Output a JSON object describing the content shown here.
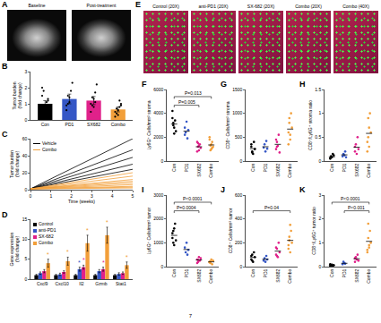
{
  "chart_data": [
    {
      "panel": "B",
      "type": "bar",
      "categories": [
        "Con",
        "PD1",
        "SX682",
        "Combo"
      ],
      "colors": [
        "#000000",
        "#3557c6",
        "#e0218a",
        "#f29f3a"
      ],
      "values": [
        1.0,
        1.3,
        1.2,
        0.65
      ],
      "errors": [
        0.2,
        0.3,
        0.25,
        0.15
      ],
      "points": [
        [
          0.4,
          0.7,
          0.9,
          1.1,
          1.3,
          1.5,
          1.8,
          0.8,
          0.6,
          1.2,
          2.0,
          0.5
        ],
        [
          0.6,
          1.0,
          1.4,
          1.8,
          2.3,
          0.9,
          1.5,
          1.1
        ],
        [
          0.5,
          0.9,
          1.3,
          1.7,
          2.2,
          1.0,
          1.4,
          0.8,
          1.1
        ],
        [
          0.2,
          0.4,
          0.6,
          0.8,
          1.0,
          0.5,
          0.7,
          0.3,
          1.2,
          0.9
        ]
      ],
      "y_label": [
        "Tumor burden",
        "(fold change)"
      ],
      "ylim": [
        0,
        3
      ],
      "yticks": [
        0,
        1,
        2,
        3
      ]
    },
    {
      "panel": "C",
      "type": "line",
      "x": [
        0,
        5
      ],
      "x_label": "Time (weeks)",
      "y_label": [
        "Tumor burden",
        "(fold change)"
      ],
      "xlim": [
        0,
        5
      ],
      "xticks": [
        0,
        1,
        2,
        3,
        4,
        5
      ],
      "ylim": [
        0,
        60
      ],
      "yticks": [
        0,
        20,
        40,
        60
      ],
      "legend": "upper left",
      "series": [
        {
          "name": "Vehicle",
          "color": "#000000",
          "lines": [
            [
              1,
              60
            ],
            [
              1,
              47
            ],
            [
              1,
              38
            ],
            [
              1,
              30
            ],
            [
              1,
              24
            ]
          ]
        },
        {
          "name": "Combo",
          "color": "#f29f3a",
          "lines": [
            [
              1,
              20
            ],
            [
              1,
              16
            ],
            [
              1,
              12
            ],
            [
              1,
              10
            ],
            [
              1,
              8
            ],
            [
              1,
              6
            ],
            [
              1,
              4
            ],
            [
              1,
              3
            ],
            [
              1,
              2
            ]
          ]
        }
      ]
    },
    {
      "panel": "D",
      "type": "bar",
      "categories": [
        "Cxcl9",
        "Cxcl10",
        "Il2",
        "Gzmb",
        "Stat1"
      ],
      "y_label": [
        "Gene expression",
        "(fold change)"
      ],
      "ylim": [
        0,
        15
      ],
      "yticks": [
        0,
        5,
        10,
        15
      ],
      "legend": "upper left",
      "series": [
        {
          "name": "Control",
          "color": "#000000",
          "values": [
            1,
            1,
            1,
            1,
            1
          ],
          "errors": [
            0.2,
            0.2,
            0.2,
            0.2,
            0.2
          ],
          "marks": [
            null,
            null,
            null,
            null,
            null
          ]
        },
        {
          "name": "anti-PD1",
          "color": "#3557c6",
          "values": [
            1.5,
            1.2,
            2.5,
            2,
            1.3
          ],
          "errors": [
            0.3,
            0.3,
            0.5,
            0.4,
            0.3
          ],
          "marks": [
            null,
            null,
            "*",
            null,
            null
          ]
        },
        {
          "name": "SX-682",
          "color": "#e0218a",
          "values": [
            2,
            1.8,
            3,
            2.5,
            1.5
          ],
          "errors": [
            0.4,
            0.3,
            0.5,
            0.5,
            0.3
          ],
          "marks": [
            null,
            null,
            "*",
            "*",
            null
          ]
        },
        {
          "name": "Combo",
          "color": "#f29f3a",
          "values": [
            4,
            4.5,
            9,
            11,
            3.5
          ],
          "errors": [
            1,
            1,
            2,
            2,
            0.8
          ],
          "marks": [
            "*",
            "*",
            "*",
            "*",
            "*"
          ]
        }
      ]
    },
    {
      "panel": "F",
      "type": "scatter",
      "marker": "circle",
      "categories": [
        "Con",
        "PD1",
        "SX682",
        "Combo"
      ],
      "colors": [
        "#000000",
        "#3557c6",
        "#e0218a",
        "#f29f3a"
      ],
      "points": [
        [
          3600,
          3200,
          2800,
          3400,
          2500,
          4200,
          3000,
          2300
        ],
        [
          2800,
          2400,
          3300,
          1900,
          2600,
          2200
        ],
        [
          1600,
          1200,
          900,
          1400,
          1100,
          800,
          1500,
          1300
        ],
        [
          1800,
          1300,
          1000,
          1600,
          1200,
          2000,
          900,
          1400,
          1100
        ]
      ],
      "means": [
        3100,
        2500,
        1200,
        1350
      ],
      "y_label": [
        "Ly6G⁺ Cells/mm² stroma"
      ],
      "ylim": [
        0,
        6000
      ],
      "yticks": [
        0,
        2000,
        4000,
        6000
      ],
      "comparisons": [
        {
          "between": [
            "Con",
            "SX682"
          ],
          "label": "P=0.005"
        },
        {
          "between": [
            "Con",
            "Combo"
          ],
          "label": "P=0.013"
        }
      ]
    },
    {
      "panel": "G",
      "type": "scatter",
      "marker": "circle",
      "categories": [
        "Con",
        "PD1",
        "SX682",
        "Combo"
      ],
      "colors": [
        "#000000",
        "#3557c6",
        "#e0218a",
        "#f29f3a"
      ],
      "points": [
        [
          300,
          200,
          150,
          400,
          250,
          350,
          180
        ],
        [
          280,
          350,
          200,
          420,
          260
        ],
        [
          250,
          400,
          320,
          550,
          180,
          450,
          300
        ],
        [
          600,
          900,
          450,
          1000,
          700,
          350,
          800,
          550
        ]
      ],
      "means": [
        260,
        300,
        350,
        670
      ],
      "y_label": [
        "CD8⁺ Cells/mm² stroma"
      ],
      "ylim": [
        0,
        1500
      ],
      "yticks": [
        0,
        500,
        1000,
        1500
      ],
      "comparisons": []
    },
    {
      "panel": "H",
      "type": "scatter",
      "marker": "circle",
      "categories": [
        "Con",
        "PD1",
        "SX682",
        "Combo"
      ],
      "colors": [
        "#000000",
        "#3557c6",
        "#e0218a",
        "#f29f3a"
      ],
      "points": [
        [
          0.05,
          0.1,
          0.08,
          0.15,
          0.12,
          0.06
        ],
        [
          0.1,
          0.15,
          0.12,
          0.2,
          0.08
        ],
        [
          0.2,
          0.35,
          0.15,
          0.5,
          0.25,
          0.3
        ],
        [
          0.4,
          0.9,
          0.3,
          1.0,
          0.6,
          0.2,
          0.5,
          0.7
        ]
      ],
      "means": [
        0.09,
        0.13,
        0.29,
        0.58
      ],
      "y_label": [
        "CD8⁺/Ly6G⁺ stroma ratio"
      ],
      "ylim": [
        0,
        1.5
      ],
      "yticks": [
        0,
        0.5,
        1,
        1.5
      ],
      "comparisons": []
    },
    {
      "panel": "I",
      "type": "scatter",
      "marker": "circle",
      "categories": [
        "Con",
        "PD1",
        "SX682",
        "Combo"
      ],
      "colors": [
        "#000000",
        "#3557c6",
        "#e0218a",
        "#f29f3a"
      ],
      "points": [
        [
          1200,
          1500,
          900,
          1800,
          1100,
          1400,
          1000,
          1600
        ],
        [
          800,
          600,
          1000,
          500,
          700
        ],
        [
          300,
          200,
          400,
          250,
          350,
          150,
          280
        ],
        [
          200,
          150,
          300,
          100,
          250,
          180,
          220
        ]
      ],
      "means": [
        1310,
        720,
        280,
        200
      ],
      "y_label": [
        "Ly6G⁺ Cells/mm² tumor"
      ],
      "ylim": [
        0,
        3000
      ],
      "yticks": [
        0,
        1000,
        2000,
        3000
      ],
      "comparisons": [
        {
          "between": [
            "Con",
            "SX682"
          ],
          "label": "P=0.0004"
        },
        {
          "between": [
            "Con",
            "Combo"
          ],
          "label": "P<0.0001"
        }
      ]
    },
    {
      "panel": "J",
      "type": "scatter",
      "marker": "circle",
      "categories": [
        "Con",
        "PD1",
        "SX682",
        "Combo"
      ],
      "colors": [
        "#000000",
        "#3557c6",
        "#e0218a",
        "#f29f3a"
      ],
      "points": [
        [
          60,
          100,
          40,
          120,
          80,
          90,
          50
        ],
        [
          50,
          70,
          40,
          90,
          60
        ],
        [
          100,
          150,
          80,
          200,
          120,
          160,
          90
        ],
        [
          150,
          250,
          120,
          300,
          200,
          180,
          220,
          350
        ]
      ],
      "means": [
        77,
        62,
        130,
        220
      ],
      "y_label": [
        "CD8⁺ Cells/mm² tumor"
      ],
      "ylim": [
        0,
        600
      ],
      "yticks": [
        0,
        200,
        400,
        600
      ],
      "comparisons": [
        {
          "between": [
            "Con",
            "Combo"
          ],
          "label": "P=0.04"
        }
      ]
    },
    {
      "panel": "K",
      "type": "scatter",
      "marker": "circle",
      "categories": [
        "Con",
        "PD1",
        "SX682",
        "Combo"
      ],
      "colors": [
        "#000000",
        "#3557c6",
        "#e0218a",
        "#f29f3a"
      ],
      "points": [
        [
          0.02,
          0.05,
          0.08,
          0.03,
          0.06,
          0.1
        ],
        [
          0.1,
          0.2,
          0.15,
          0.12
        ],
        [
          0.2,
          0.4,
          0.3,
          0.5,
          0.25,
          0.35
        ],
        [
          0.6,
          1.2,
          0.8,
          1.5,
          1.0,
          0.7,
          1.8,
          0.9
        ]
      ],
      "means": [
        0.06,
        0.14,
        0.33,
        1.06
      ],
      "y_label": [
        "CD8⁺/Ly6G⁺ tumor ratio"
      ],
      "ylim": [
        0,
        3
      ],
      "yticks": [
        0,
        1,
        2,
        3
      ],
      "comparisons": [
        {
          "between": [
            "PD1",
            "Combo"
          ],
          "label": "P<0.001"
        },
        {
          "between": [
            "Con",
            "Combo"
          ],
          "label": "P<0.0001"
        }
      ]
    }
  ],
  "images": [
    {
      "panel": "A",
      "labels": [
        "Baseline",
        "Post-treatment"
      ]
    },
    {
      "panel": "E",
      "labels": [
        "Control (20X)",
        "anti-PD1 (20X)",
        "SX-682 (20X)",
        "Combo (20X)",
        "Combo (40X)"
      ]
    }
  ],
  "page_number": "7"
}
